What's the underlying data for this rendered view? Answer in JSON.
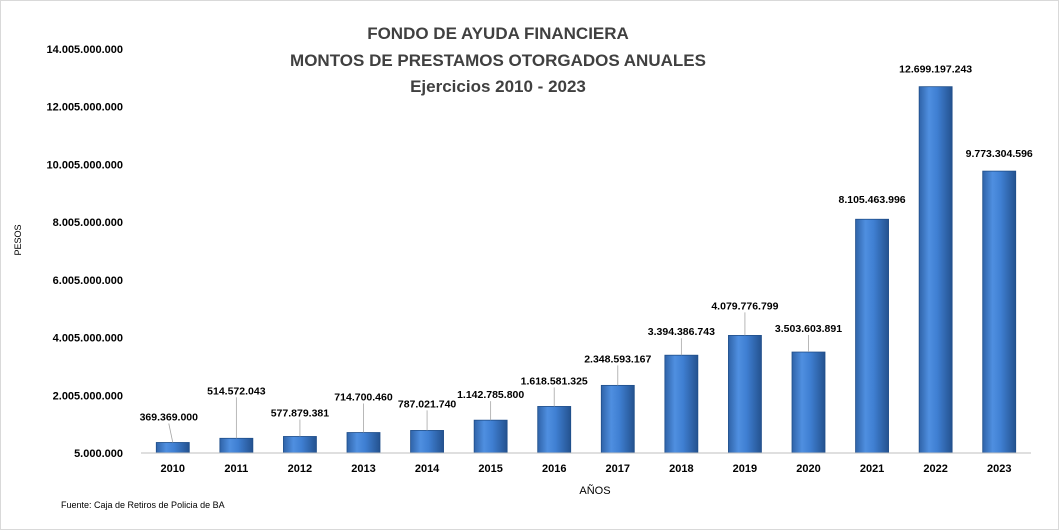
{
  "chart_data": {
    "type": "bar",
    "title": [
      "FONDO DE AYUDA FINANCIERA",
      "MONTOS  DE  PRESTAMOS  OTORGADOS  ANUALES",
      "Ejercicios  2010 - 2023"
    ],
    "xlabel": "AÑOS",
    "ylabel": "PESOS",
    "categories": [
      "2010",
      "2011",
      "2012",
      "2013",
      "2014",
      "2015",
      "2016",
      "2017",
      "2018",
      "2019",
      "2020",
      "2021",
      "2022",
      "2023"
    ],
    "values": [
      369369000,
      514572043,
      577879381,
      714700460,
      787021740,
      1142785800,
      1618581325,
      2348593167,
      3394386743,
      4079776799,
      3503603891,
      8105463996,
      12699197243,
      9773304596
    ],
    "value_labels": [
      "369.369.000",
      "514.572.043",
      "577.879.381",
      "714.700.460",
      "787.021.740",
      "1.142.785.800",
      "1.618.581.325",
      "2.348.593.167",
      "3.394.386.743",
      "4.079.776.799",
      "3.503.603.891",
      "8.105.463.996",
      "12.699.197.243",
      "9.773.304.596"
    ],
    "yticks": [
      5000000,
      2005000000,
      4005000000,
      6005000000,
      8005000000,
      10005000000,
      12005000000,
      14005000000
    ],
    "ytick_labels": [
      "5.000.000",
      "2.005.000.000",
      "4.005.000.000",
      "6.005.000.000",
      "8.005.000.000",
      "10.005.000.000",
      "12.005.000.000",
      "14.005.000.000"
    ],
    "ylim": [
      5000000,
      14005000000
    ],
    "grid": false,
    "legend": "none",
    "bar_color": "#3a78cc",
    "source": "Fuente: Caja de Retiros de Policia de BA"
  }
}
